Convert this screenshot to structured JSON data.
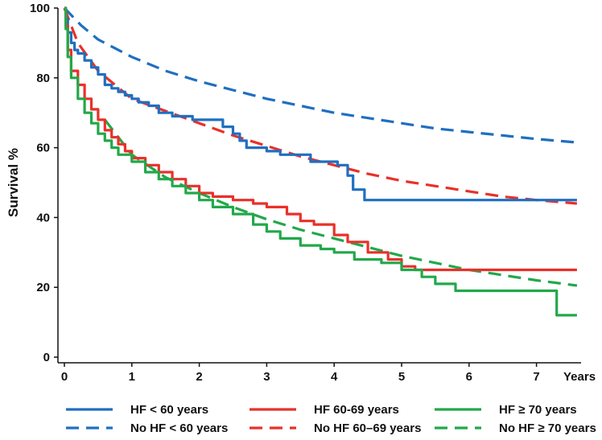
{
  "chart_data": {
    "type": "line",
    "title": "",
    "xlabel": "Years",
    "ylabel": "Survival %",
    "xlim": [
      0,
      7.6
    ],
    "ylim": [
      0,
      100
    ],
    "xticks": [
      0,
      1,
      2,
      3,
      4,
      5,
      6,
      7
    ],
    "yticks": [
      0,
      20,
      40,
      60,
      80,
      100
    ],
    "grid": false,
    "legend_position": "bottom",
    "series": [
      {
        "name": "HF < 60 years",
        "color": "#1f6fc0",
        "style": "solid",
        "kind": "step",
        "points": [
          [
            0,
            100
          ],
          [
            0.02,
            97
          ],
          [
            0.05,
            93
          ],
          [
            0.1,
            90
          ],
          [
            0.15,
            88
          ],
          [
            0.2,
            87
          ],
          [
            0.3,
            85
          ],
          [
            0.4,
            83
          ],
          [
            0.5,
            81
          ],
          [
            0.6,
            78
          ],
          [
            0.7,
            77
          ],
          [
            0.8,
            76
          ],
          [
            0.9,
            75
          ],
          [
            1.0,
            74
          ],
          [
            1.1,
            73
          ],
          [
            1.25,
            72
          ],
          [
            1.4,
            70
          ],
          [
            1.6,
            69
          ],
          [
            1.8,
            69
          ],
          [
            1.9,
            68
          ],
          [
            2.25,
            68
          ],
          [
            2.35,
            66
          ],
          [
            2.5,
            64
          ],
          [
            2.6,
            62
          ],
          [
            2.7,
            60
          ],
          [
            3.0,
            59
          ],
          [
            3.2,
            58
          ],
          [
            3.65,
            56
          ],
          [
            4.05,
            55
          ],
          [
            4.2,
            52
          ],
          [
            4.28,
            48
          ],
          [
            4.45,
            45
          ],
          [
            7.6,
            45
          ]
        ]
      },
      {
        "name": "No HF < 60 years",
        "color": "#1f6fc0",
        "style": "dashed",
        "kind": "curve",
        "points": [
          [
            0,
            100
          ],
          [
            0.25,
            95
          ],
          [
            0.5,
            91
          ],
          [
            1,
            86
          ],
          [
            1.5,
            82
          ],
          [
            2,
            79
          ],
          [
            2.5,
            76.5
          ],
          [
            3,
            74
          ],
          [
            3.5,
            72
          ],
          [
            4,
            70
          ],
          [
            4.5,
            68.5
          ],
          [
            5,
            67
          ],
          [
            5.5,
            65.5
          ],
          [
            6,
            64.5
          ],
          [
            6.5,
            63.5
          ],
          [
            7,
            62.5
          ],
          [
            7.6,
            61.5
          ]
        ]
      },
      {
        "name": "HF 60-69 years",
        "color": "#e8312a",
        "style": "solid",
        "kind": "step",
        "points": [
          [
            0,
            100
          ],
          [
            0.02,
            95
          ],
          [
            0.05,
            88
          ],
          [
            0.1,
            82
          ],
          [
            0.2,
            78
          ],
          [
            0.3,
            74
          ],
          [
            0.4,
            71
          ],
          [
            0.5,
            68
          ],
          [
            0.6,
            65
          ],
          [
            0.7,
            63
          ],
          [
            0.8,
            61
          ],
          [
            0.9,
            59
          ],
          [
            1.0,
            57
          ],
          [
            1.2,
            55
          ],
          [
            1.4,
            53
          ],
          [
            1.6,
            51
          ],
          [
            1.8,
            49
          ],
          [
            2.0,
            47
          ],
          [
            2.2,
            46
          ],
          [
            2.5,
            45
          ],
          [
            2.8,
            44
          ],
          [
            3.0,
            43
          ],
          [
            3.3,
            41
          ],
          [
            3.5,
            39
          ],
          [
            3.7,
            38
          ],
          [
            4.0,
            35
          ],
          [
            4.2,
            33
          ],
          [
            4.5,
            30
          ],
          [
            4.8,
            28
          ],
          [
            5.0,
            26
          ],
          [
            5.2,
            25
          ],
          [
            7.6,
            25
          ]
        ]
      },
      {
        "name": "No HF 60–69 years",
        "color": "#e8312a",
        "style": "dashed",
        "kind": "curve",
        "points": [
          [
            0,
            100
          ],
          [
            0.2,
            90
          ],
          [
            0.5,
            82
          ],
          [
            1,
            74
          ],
          [
            1.5,
            70.5
          ],
          [
            2,
            67
          ],
          [
            2.5,
            63.5
          ],
          [
            3,
            60.5
          ],
          [
            3.5,
            57.5
          ],
          [
            4,
            55
          ],
          [
            4.5,
            52.5
          ],
          [
            5,
            50.5
          ],
          [
            5.5,
            49
          ],
          [
            6,
            47.5
          ],
          [
            6.5,
            46
          ],
          [
            7,
            45
          ],
          [
            7.6,
            44
          ]
        ]
      },
      {
        "name": "HF ≥ 70 years",
        "color": "#22a84a",
        "style": "solid",
        "kind": "step",
        "points": [
          [
            0,
            100
          ],
          [
            0.02,
            94
          ],
          [
            0.05,
            86
          ],
          [
            0.1,
            80
          ],
          [
            0.2,
            74
          ],
          [
            0.3,
            70
          ],
          [
            0.4,
            67
          ],
          [
            0.5,
            64
          ],
          [
            0.6,
            62
          ],
          [
            0.7,
            60
          ],
          [
            0.8,
            58
          ],
          [
            1.0,
            56
          ],
          [
            1.2,
            53
          ],
          [
            1.4,
            51
          ],
          [
            1.6,
            49
          ],
          [
            1.8,
            47
          ],
          [
            2.0,
            45
          ],
          [
            2.2,
            43
          ],
          [
            2.5,
            41
          ],
          [
            2.8,
            38
          ],
          [
            3.0,
            36
          ],
          [
            3.2,
            34
          ],
          [
            3.5,
            32
          ],
          [
            3.8,
            31
          ],
          [
            4.0,
            30
          ],
          [
            4.3,
            28
          ],
          [
            4.7,
            27
          ],
          [
            5.0,
            25
          ],
          [
            5.3,
            23
          ],
          [
            5.5,
            21
          ],
          [
            5.8,
            19
          ],
          [
            6.3,
            19
          ],
          [
            7.25,
            19
          ],
          [
            7.3,
            12
          ],
          [
            7.6,
            12
          ]
        ]
      },
      {
        "name": "No HF ≥ 70 years",
        "color": "#22a84a",
        "style": "dashed",
        "kind": "curve",
        "points": [
          [
            0.6,
            68
          ],
          [
            1,
            58
          ],
          [
            1.5,
            51.5
          ],
          [
            2,
            47
          ],
          [
            2.5,
            43
          ],
          [
            3,
            39.5
          ],
          [
            3.5,
            36.5
          ],
          [
            4,
            34
          ],
          [
            4.5,
            31.5
          ],
          [
            5,
            29
          ],
          [
            5.5,
            27
          ],
          [
            6,
            25
          ],
          [
            6.5,
            23.5
          ],
          [
            7,
            22
          ],
          [
            7.6,
            20.5
          ]
        ]
      }
    ]
  }
}
